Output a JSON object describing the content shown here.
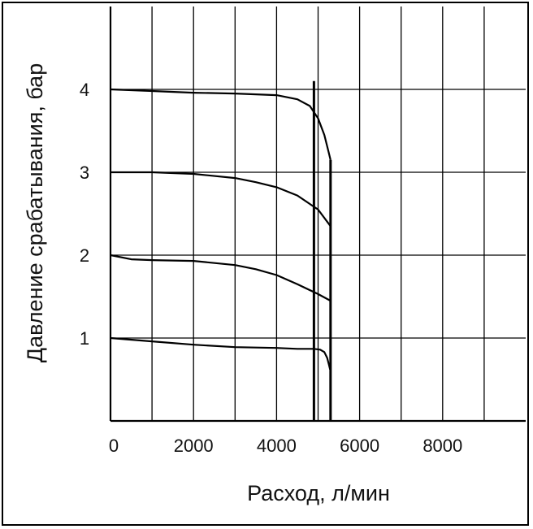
{
  "chart_data": {
    "type": "line",
    "title": "",
    "xlabel": "Расход, л/мин",
    "ylabel": "Давление срабатывания, бар",
    "xlim": [
      0,
      10000
    ],
    "ylim": [
      0,
      4
    ],
    "x_ticks": [
      0,
      2000,
      4000,
      6000,
      8000
    ],
    "y_ticks": [
      1,
      2,
      3,
      4
    ],
    "grid": true,
    "legend": "none",
    "colors": {
      "line": "#000000",
      "grid": "#000000"
    },
    "series": [
      {
        "x": [
          0,
          1000,
          2000,
          3000,
          4000,
          4500,
          4800,
          5000,
          5150,
          5250,
          5300
        ],
        "y": [
          4.0,
          3.98,
          3.96,
          3.95,
          3.93,
          3.88,
          3.8,
          3.65,
          3.45,
          3.25,
          3.15
        ]
      },
      {
        "x": [
          0,
          1000,
          2000,
          3000,
          3500,
          4000,
          4500,
          5000,
          5300
        ],
        "y": [
          3.0,
          3.0,
          2.98,
          2.93,
          2.88,
          2.82,
          2.72,
          2.55,
          2.35
        ]
      },
      {
        "x": [
          0,
          500,
          1000,
          2000,
          3000,
          3500,
          4000,
          4500,
          5000,
          5300
        ],
        "y": [
          2.0,
          1.95,
          1.94,
          1.93,
          1.88,
          1.83,
          1.76,
          1.65,
          1.53,
          1.45
        ]
      },
      {
        "x": [
          0,
          1000,
          2000,
          3000,
          4000,
          4500,
          4900,
          5050,
          5150,
          5220,
          5260,
          5290
        ],
        "y": [
          1.0,
          0.96,
          0.92,
          0.89,
          0.88,
          0.87,
          0.87,
          0.86,
          0.83,
          0.76,
          0.68,
          0.62
        ]
      }
    ],
    "vertical_lines": [
      4900,
      5300
    ]
  }
}
